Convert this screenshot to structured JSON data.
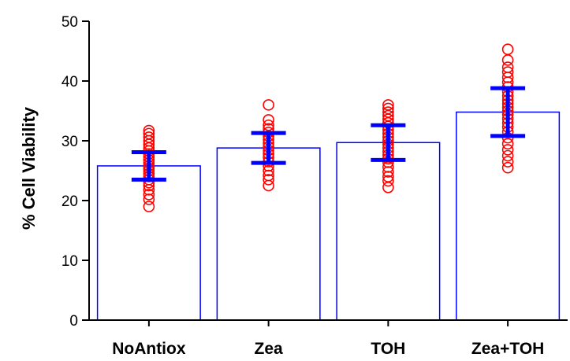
{
  "chart_data": {
    "type": "bar",
    "title": "",
    "xlabel": "",
    "ylabel": "% Cell Viability",
    "ylim": [
      0,
      50
    ],
    "yticks": [
      0,
      10,
      20,
      30,
      40,
      50
    ],
    "grid": false,
    "legend": "none",
    "categories": [
      "NoAntiox",
      "Zea",
      "TOH",
      "Zea+TOH"
    ],
    "values": [
      25.8,
      28.8,
      29.7,
      34.8
    ],
    "error": [
      {
        "low": 23.5,
        "high": 28.1
      },
      {
        "low": 26.3,
        "high": 31.3
      },
      {
        "low": 26.8,
        "high": 32.6
      },
      {
        "low": 30.8,
        "high": 38.8
      }
    ],
    "points": [
      [
        19.0,
        20.2,
        21.0,
        21.8,
        22.5,
        23.0,
        23.5,
        24.0,
        24.5,
        25.0,
        25.4,
        25.8,
        26.3,
        26.8,
        27.3,
        27.8,
        28.3,
        28.8,
        29.4,
        30.0,
        30.6,
        31.2,
        31.7
      ],
      [
        22.5,
        23.5,
        24.2,
        25.0,
        25.8,
        26.5,
        27.2,
        27.8,
        28.4,
        29.0,
        29.6,
        30.2,
        30.8,
        31.4,
        32.0,
        32.6,
        33.5,
        36.0
      ],
      [
        22.2,
        23.3,
        24.0,
        24.8,
        25.6,
        26.4,
        27.0,
        27.6,
        28.2,
        28.8,
        29.4,
        30.0,
        30.6,
        31.2,
        31.8,
        32.4,
        33.0,
        33.6,
        34.2,
        34.8,
        35.4,
        36.0
      ],
      [
        25.5,
        26.5,
        27.5,
        28.5,
        29.5,
        30.5,
        31.5,
        32.3,
        33.0,
        33.7,
        34.4,
        35.0,
        35.6,
        36.2,
        36.8,
        37.5,
        38.2,
        39.0,
        39.8,
        40.6,
        41.5,
        42.3,
        43.5,
        45.3
      ]
    ],
    "colors": {
      "bar_outline": "#0000ff",
      "bar_fill": "#ffffff",
      "error_bar": "#0000ff",
      "points": "#ff0000",
      "axis": "#000000"
    }
  }
}
